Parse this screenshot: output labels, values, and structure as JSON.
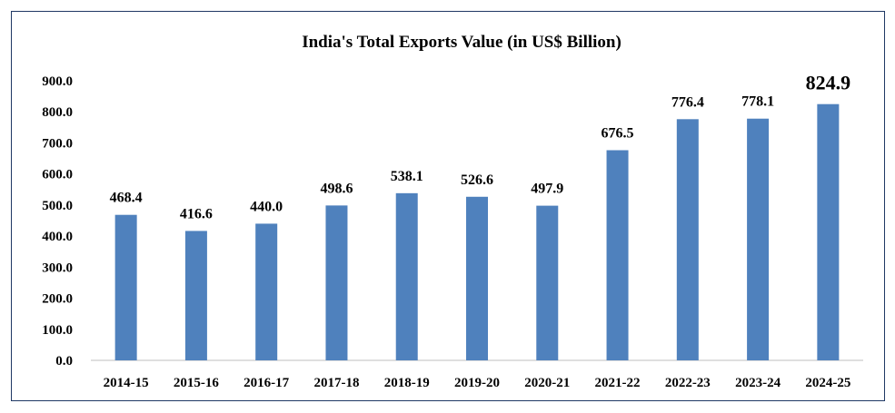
{
  "chart_data": {
    "type": "bar",
    "title": "India's Total Exports Value (in US$ Billion)",
    "categories": [
      "2014-15",
      "2015-16",
      "2016-17",
      "2017-18",
      "2018-19",
      "2019-20",
      "2020-21",
      "2021-22",
      "2022-23",
      "2023-24",
      "2024-25"
    ],
    "values": [
      468.4,
      416.6,
      440.0,
      498.6,
      538.1,
      526.6,
      497.9,
      676.5,
      776.4,
      778.1,
      824.9
    ],
    "value_labels": [
      "468.4",
      "416.6",
      "440.0",
      "498.6",
      "538.1",
      "526.6",
      "497.9",
      "676.5",
      "776.4",
      "778.1",
      "824.9"
    ],
    "y_ticks": [
      "0.0",
      "100.0",
      "200.0",
      "300.0",
      "400.0",
      "500.0",
      "600.0",
      "700.0",
      "800.0",
      "900.0"
    ],
    "ylim": [
      0,
      900
    ],
    "xlabel": "",
    "ylabel": "",
    "grid": false,
    "legend": "none",
    "bar_color": "#4f81bd",
    "highlight_last_label": true
  }
}
